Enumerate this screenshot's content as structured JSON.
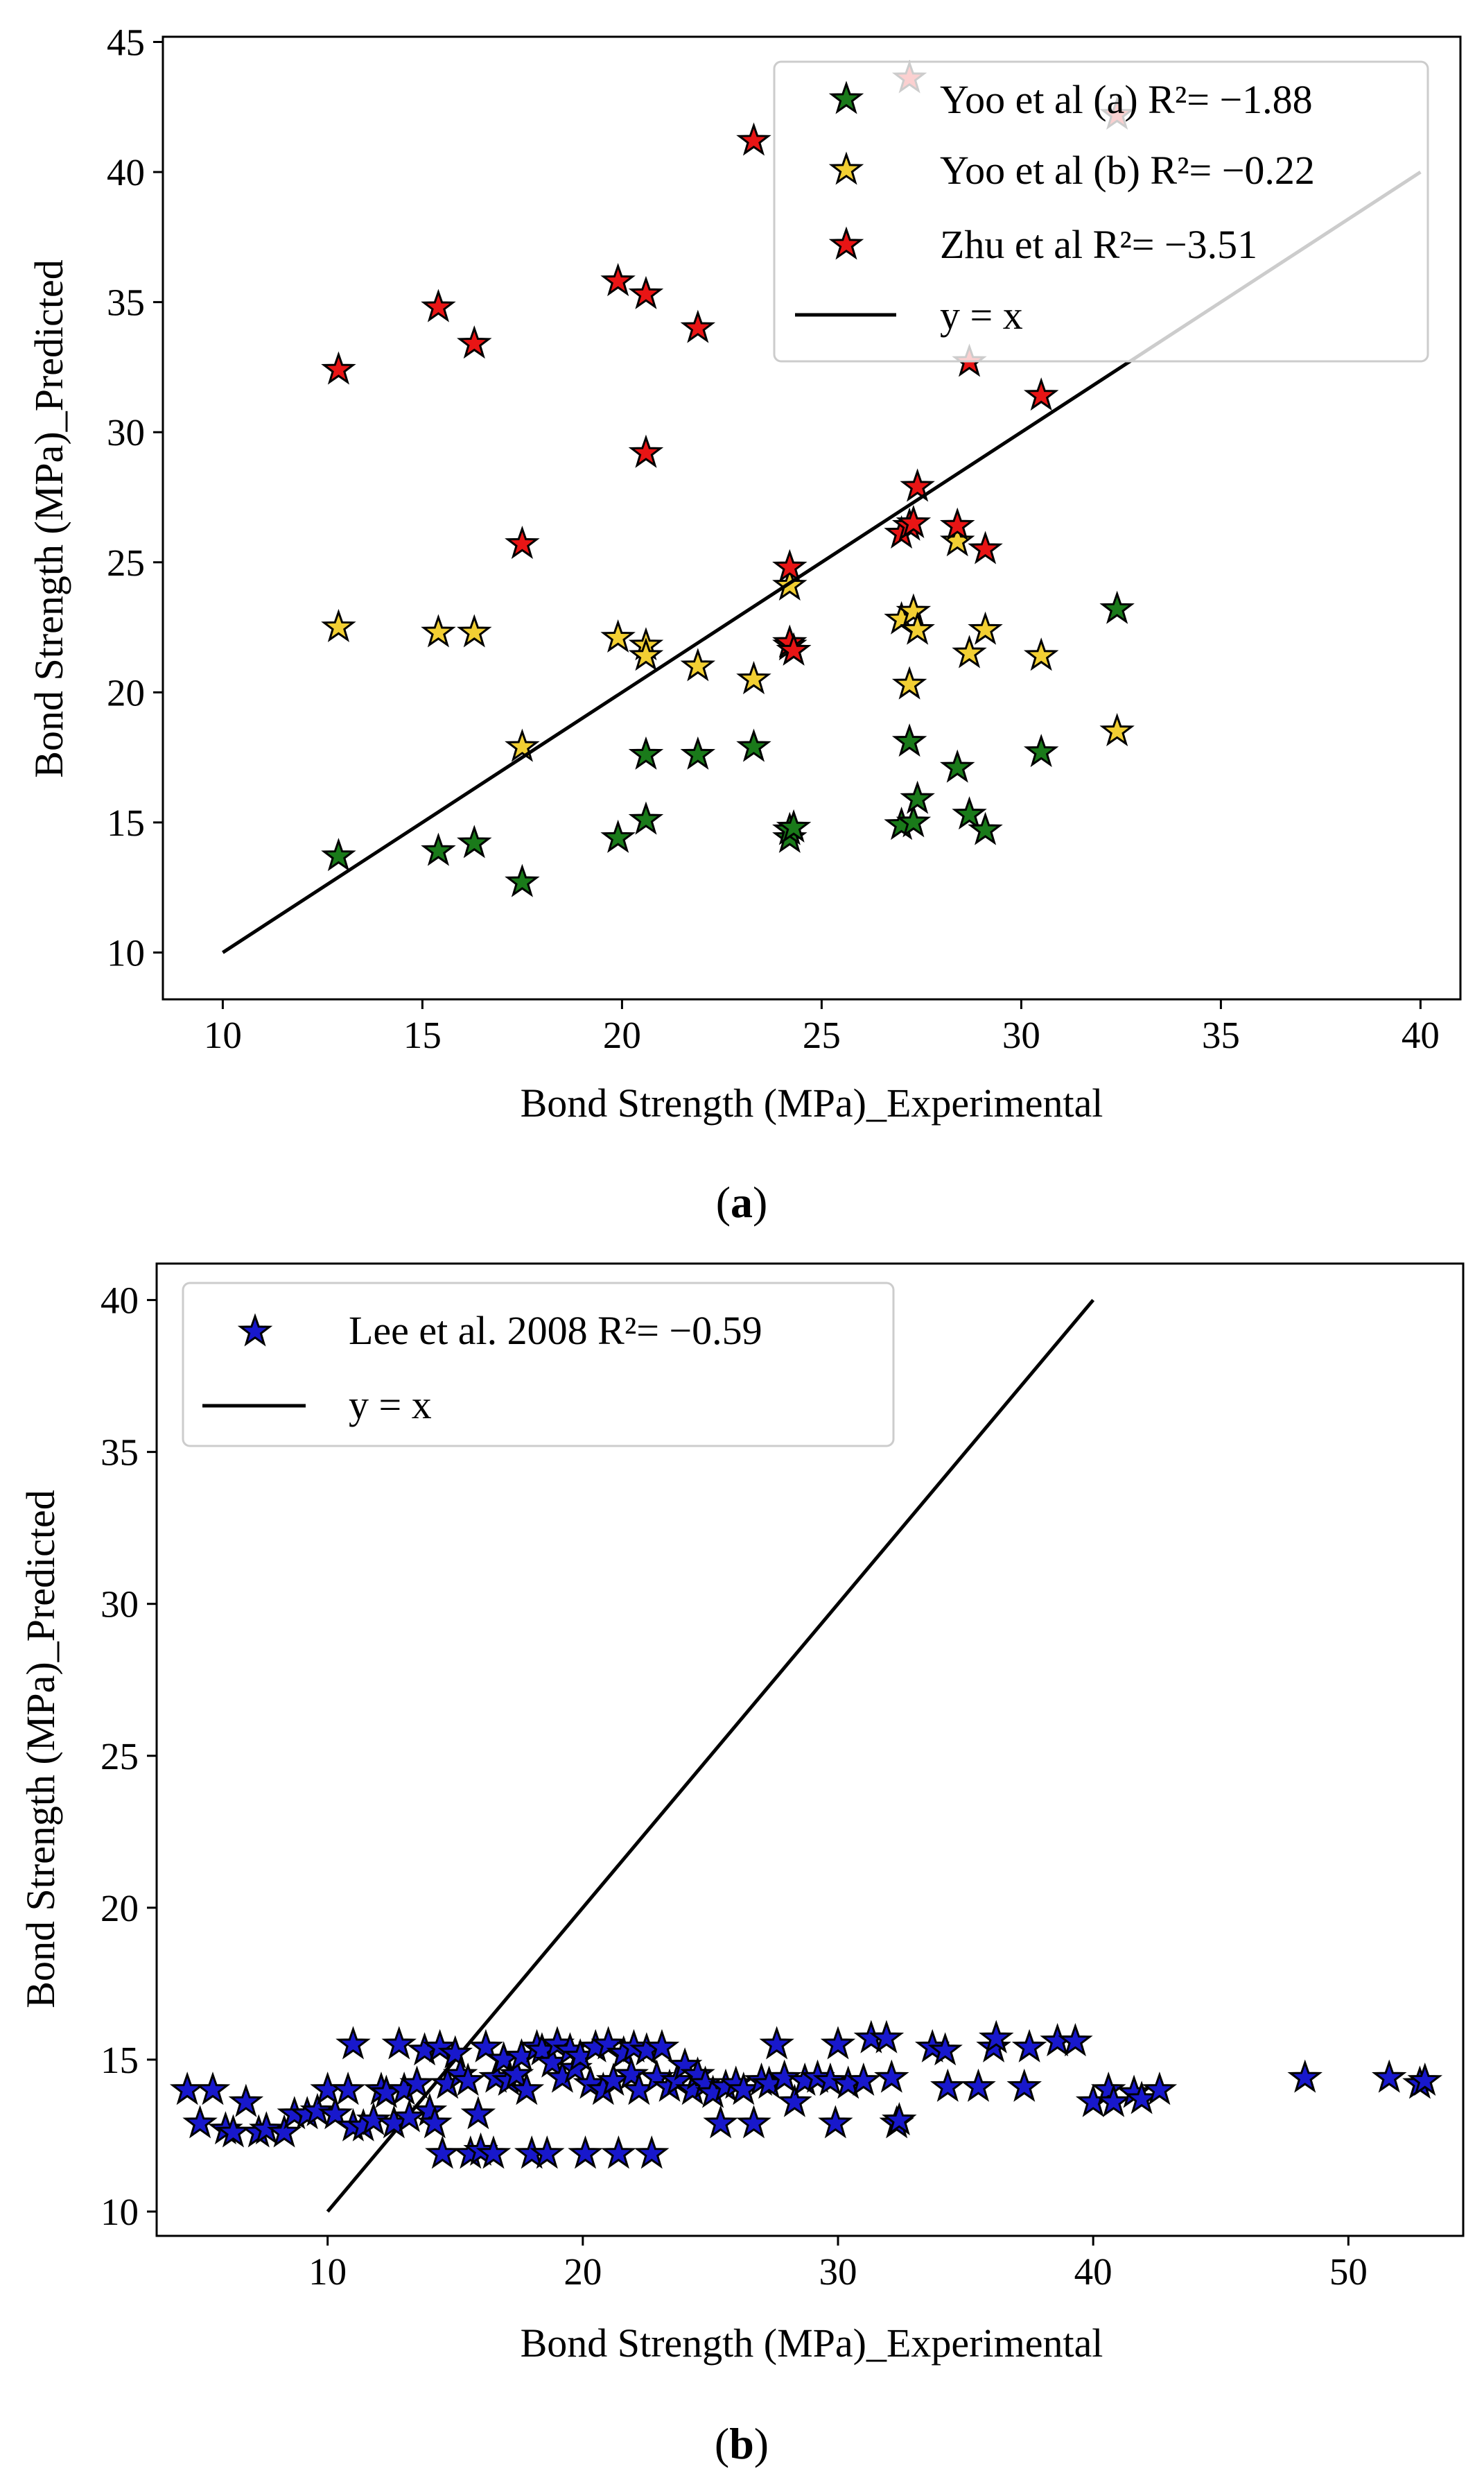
{
  "chart_data": [
    {
      "type": "scatter",
      "caption": "(a)",
      "caption_letter": "a",
      "xlabel": "Bond Strength (MPa)_Experimental",
      "ylabel": "Bond Strength (MPa)_Predicted",
      "xlim": [
        8.5,
        41.0
      ],
      "ylim": [
        8.2,
        45.2
      ],
      "xticks": [
        10,
        15,
        20,
        25,
        30,
        35,
        40
      ],
      "yticks": [
        10,
        15,
        20,
        25,
        30,
        35,
        40,
        45
      ],
      "legend_position": "top-right",
      "experimental": [
        12.9,
        15.4,
        16.3,
        17.5,
        19.9,
        20.6,
        20.6,
        21.9,
        23.3,
        24.2,
        24.2,
        24.3,
        27.0,
        27.2,
        27.3,
        27.4,
        28.4,
        28.7,
        29.1,
        30.5,
        32.4,
        27.2,
        32.4,
        28.7
      ],
      "series": [
        {
          "name": "Yoo et al (a) R²= −1.88",
          "color": "#1a7a1a",
          "values": [
            13.7,
            13.9,
            14.2,
            12.7,
            14.4,
            17.6,
            15.1,
            17.6,
            17.9,
            14.4,
            14.7,
            14.8,
            14.9,
            18.1,
            15.0,
            15.9,
            17.1,
            15.3,
            14.7,
            17.7,
            23.2,
            null,
            null,
            null
          ]
        },
        {
          "name": "Yoo et al (b) R²= −0.22",
          "color": "#f2cf33",
          "values": [
            22.5,
            22.3,
            22.3,
            17.9,
            22.1,
            21.8,
            21.4,
            21.0,
            20.5,
            21.8,
            24.1,
            21.6,
            22.8,
            20.3,
            23.1,
            22.4,
            25.8,
            21.5,
            22.4,
            21.4,
            18.5,
            null,
            null,
            null
          ]
        },
        {
          "name": "Zhu et al R²= −3.51",
          "color": "#e81515",
          "values": [
            32.4,
            34.8,
            33.4,
            25.7,
            35.8,
            35.3,
            29.2,
            34.0,
            41.2,
            24.8,
            21.9,
            21.6,
            26.1,
            26.4,
            26.5,
            27.9,
            26.4,
            32.7,
            25.5,
            31.4,
            42.2,
            43.6,
            null,
            null
          ]
        }
      ],
      "reference_line": {
        "name": "y = x",
        "x": [
          10,
          40
        ],
        "y": [
          10,
          40
        ]
      }
    },
    {
      "type": "scatter",
      "caption": "(b)",
      "caption_letter": "b",
      "xlabel": "Bond Strength (MPa)_Experimental",
      "ylabel": "Bond Strength (MPa)_Predicted",
      "xlim": [
        3.3,
        54.5
      ],
      "ylim": [
        9.2,
        41.2
      ],
      "xticks": [
        10,
        20,
        30,
        40,
        50
      ],
      "yticks": [
        10,
        15,
        20,
        25,
        30,
        35,
        40
      ],
      "legend_position": "top-left",
      "series": [
        {
          "name": "Lee et al. 2008 R²= −0.59",
          "color": "#1818cc",
          "points": [
            [
              4.5,
              14.0
            ],
            [
              5.0,
              12.9
            ],
            [
              5.5,
              14.0
            ],
            [
              6.0,
              12.7
            ],
            [
              6.3,
              12.6
            ],
            [
              6.8,
              13.6
            ],
            [
              7.3,
              12.6
            ],
            [
              7.6,
              12.7
            ],
            [
              8.3,
              12.6
            ],
            [
              8.7,
              13.2
            ],
            [
              9.2,
              13.2
            ],
            [
              9.6,
              13.3
            ],
            [
              10.0,
              14.0
            ],
            [
              10.3,
              13.2
            ],
            [
              10.8,
              14.0
            ],
            [
              11.0,
              15.5
            ],
            [
              11.0,
              12.8
            ],
            [
              11.4,
              12.8
            ],
            [
              11.8,
              13.0
            ],
            [
              12.1,
              14.0
            ],
            [
              12.3,
              13.9
            ],
            [
              12.6,
              12.9
            ],
            [
              12.8,
              15.5
            ],
            [
              13.0,
              14.0
            ],
            [
              13.2,
              13.1
            ],
            [
              13.5,
              14.2
            ],
            [
              13.8,
              15.3
            ],
            [
              14.0,
              13.3
            ],
            [
              14.2,
              12.9
            ],
            [
              14.4,
              15.4
            ],
            [
              14.5,
              11.9
            ],
            [
              14.7,
              14.2
            ],
            [
              15.0,
              15.2
            ],
            [
              15.2,
              14.5
            ],
            [
              15.5,
              14.3
            ],
            [
              15.6,
              11.9
            ],
            [
              15.9,
              13.2
            ],
            [
              16.0,
              12.0
            ],
            [
              16.2,
              15.4
            ],
            [
              16.5,
              11.9
            ],
            [
              16.6,
              14.4
            ],
            [
              16.9,
              15.0
            ],
            [
              17.1,
              14.3
            ],
            [
              17.4,
              14.5
            ],
            [
              17.6,
              15.1
            ],
            [
              17.8,
              14.0
            ],
            [
              18.0,
              11.9
            ],
            [
              18.2,
              15.4
            ],
            [
              18.4,
              15.3
            ],
            [
              18.6,
              11.9
            ],
            [
              18.8,
              14.9
            ],
            [
              19.0,
              15.5
            ],
            [
              19.2,
              14.4
            ],
            [
              19.5,
              15.3
            ],
            [
              19.7,
              14.7
            ],
            [
              19.9,
              15.1
            ],
            [
              20.1,
              11.9
            ],
            [
              20.3,
              14.2
            ],
            [
              20.5,
              15.4
            ],
            [
              20.8,
              14.0
            ],
            [
              21.0,
              15.5
            ],
            [
              21.2,
              14.3
            ],
            [
              21.4,
              11.9
            ],
            [
              21.6,
              15.2
            ],
            [
              21.9,
              14.5
            ],
            [
              22.0,
              15.4
            ],
            [
              22.2,
              14.0
            ],
            [
              22.5,
              15.3
            ],
            [
              22.7,
              11.9
            ],
            [
              22.9,
              14.4
            ],
            [
              23.1,
              15.4
            ],
            [
              23.4,
              14.1
            ],
            [
              23.7,
              14.3
            ],
            [
              24.0,
              14.8
            ],
            [
              24.3,
              14.0
            ],
            [
              24.5,
              14.5
            ],
            [
              24.8,
              14.2
            ],
            [
              25.1,
              13.9
            ],
            [
              25.4,
              12.9
            ],
            [
              25.6,
              14.1
            ],
            [
              26.0,
              14.2
            ],
            [
              26.3,
              14.0
            ],
            [
              26.7,
              12.9
            ],
            [
              27.0,
              14.3
            ],
            [
              27.3,
              14.2
            ],
            [
              27.6,
              15.5
            ],
            [
              27.9,
              14.4
            ],
            [
              28.3,
              13.6
            ],
            [
              28.7,
              14.3
            ],
            [
              29.2,
              14.4
            ],
            [
              29.7,
              14.3
            ],
            [
              29.9,
              12.9
            ],
            [
              30.0,
              15.5
            ],
            [
              30.4,
              14.2
            ],
            [
              31.0,
              14.3
            ],
            [
              31.3,
              15.7
            ],
            [
              31.9,
              15.7
            ],
            [
              32.1,
              14.4
            ],
            [
              32.3,
              12.9
            ],
            [
              32.4,
              13.0
            ],
            [
              33.7,
              15.4
            ],
            [
              34.2,
              15.3
            ],
            [
              34.3,
              14.1
            ],
            [
              35.5,
              14.1
            ],
            [
              36.1,
              15.4
            ],
            [
              36.2,
              15.7
            ],
            [
              37.3,
              14.1
            ],
            [
              37.5,
              15.4
            ],
            [
              38.6,
              15.6
            ],
            [
              39.3,
              15.6
            ],
            [
              40.0,
              13.6
            ],
            [
              40.6,
              14.0
            ],
            [
              40.8,
              13.6
            ],
            [
              41.6,
              13.9
            ],
            [
              41.9,
              13.7
            ],
            [
              42.6,
              14.0
            ],
            [
              48.3,
              14.4
            ],
            [
              51.6,
              14.4
            ],
            [
              52.8,
              14.2
            ],
            [
              53.0,
              14.3
            ]
          ]
        }
      ],
      "reference_line": {
        "name": "y = x",
        "x": [
          10,
          40
        ],
        "y": [
          10,
          40
        ]
      }
    }
  ]
}
